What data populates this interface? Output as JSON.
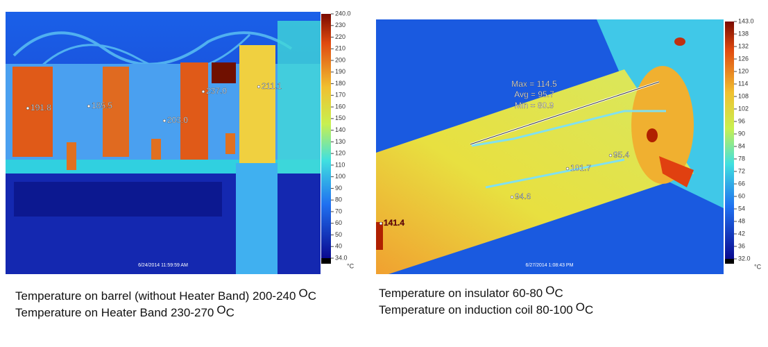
{
  "panels": [
    {
      "spots": [
        "191.8",
        "185.5",
        "203.0",
        "237.0",
        "211.1"
      ],
      "scale_ticks": [
        "240.0",
        "230",
        "220",
        "210",
        "200",
        "190",
        "180",
        "170",
        "160",
        "150",
        "140",
        "130",
        "120",
        "110",
        "100",
        "90",
        "80",
        "70",
        "60",
        "50",
        "40",
        "34.0"
      ],
      "unit": "°C",
      "timestamp": "6/24/2014 11:59:59 AM",
      "caption": [
        {
          "text": "Temperature on barrel (without Heater Band) 200-240",
          "degree": "O",
          "unit": "C"
        },
        {
          "text": "Temperature on Heater Band 230-270",
          "degree": "O",
          "unit": "C"
        }
      ]
    },
    {
      "spots": [
        "141.4",
        "94.6",
        "101.7",
        "95.4"
      ],
      "stats": [
        "Max = 114.5",
        "Avg = 95.7",
        "Min = 80.9"
      ],
      "scale_ticks": [
        "143.0",
        "138",
        "132",
        "126",
        "120",
        "114",
        "108",
        "102",
        "96",
        "90",
        "84",
        "78",
        "72",
        "66",
        "60",
        "54",
        "48",
        "42",
        "36",
        "32.0"
      ],
      "unit": "°C",
      "timestamp": "6/27/2014 1:08:43 PM",
      "caption": [
        {
          "text": "Temperature on insulator 60-80",
          "degree": "O",
          "unit": "C"
        },
        {
          "text": "Temperature on induction coil 80-100",
          "degree": "O",
          "unit": "C"
        }
      ]
    }
  ]
}
